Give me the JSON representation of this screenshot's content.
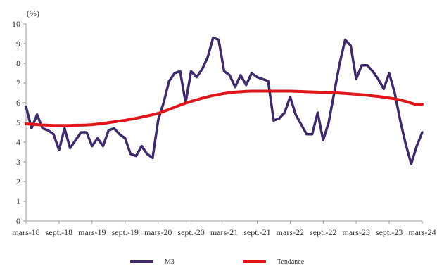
{
  "chart_data": {
    "type": "line",
    "unit_label": "(%)",
    "ylim": [
      0,
      10
    ],
    "yticks": [
      0,
      1,
      2,
      3,
      4,
      5,
      6,
      7,
      8,
      9,
      10
    ],
    "x_tick_labels": [
      "mars-18",
      "sept.-18",
      "mars-19",
      "sept.-19",
      "mars-20",
      "sept.-20",
      "mars-21",
      "sept.-21",
      "mars-22",
      "sept.-22",
      "mars-23",
      "sept.-23",
      "mars-24"
    ],
    "x": [
      "2018-03",
      "2018-04",
      "2018-05",
      "2018-06",
      "2018-07",
      "2018-08",
      "2018-09",
      "2018-10",
      "2018-11",
      "2018-12",
      "2019-01",
      "2019-02",
      "2019-03",
      "2019-04",
      "2019-05",
      "2019-06",
      "2019-07",
      "2019-08",
      "2019-09",
      "2019-10",
      "2019-11",
      "2019-12",
      "2020-01",
      "2020-02",
      "2020-03",
      "2020-04",
      "2020-05",
      "2020-06",
      "2020-07",
      "2020-08",
      "2020-09",
      "2020-10",
      "2020-11",
      "2020-12",
      "2021-01",
      "2021-02",
      "2021-03",
      "2021-04",
      "2021-05",
      "2021-06",
      "2021-07",
      "2021-08",
      "2021-09",
      "2021-10",
      "2021-11",
      "2021-12",
      "2022-01",
      "2022-02",
      "2022-03",
      "2022-04",
      "2022-05",
      "2022-06",
      "2022-07",
      "2022-08",
      "2022-09",
      "2022-10",
      "2022-11",
      "2022-12",
      "2023-01",
      "2023-02",
      "2023-03",
      "2023-04",
      "2023-05",
      "2023-06",
      "2023-07",
      "2023-08",
      "2023-09",
      "2023-10",
      "2023-11",
      "2023-12",
      "2024-01",
      "2024-02",
      "2024-03"
    ],
    "grid": false,
    "legend_position": "bottom",
    "series": [
      {
        "name": "M3",
        "color": "#3f2a6b",
        "values": [
          5.8,
          4.7,
          5.4,
          4.7,
          4.6,
          4.4,
          3.6,
          4.7,
          3.7,
          4.1,
          4.5,
          4.5,
          3.8,
          4.2,
          3.8,
          4.6,
          4.7,
          4.4,
          4.2,
          3.4,
          3.3,
          3.8,
          3.4,
          3.2,
          5.1,
          6.0,
          7.1,
          7.5,
          7.6,
          6.0,
          7.6,
          7.3,
          7.7,
          8.3,
          9.3,
          9.2,
          7.6,
          7.4,
          6.8,
          7.4,
          6.9,
          7.5,
          7.3,
          7.2,
          7.1,
          5.1,
          5.2,
          5.5,
          6.3,
          5.4,
          4.9,
          4.4,
          4.4,
          5.5,
          4.1,
          5.0,
          6.5,
          8.0,
          9.2,
          8.9,
          7.2,
          7.9,
          7.9,
          7.6,
          7.2,
          6.7,
          7.5,
          6.5,
          5.1,
          3.9,
          2.9,
          3.8,
          4.5
        ]
      },
      {
        "name": "Tendance",
        "color": "#e0161b",
        "values": [
          4.93,
          4.91,
          4.89,
          4.87,
          4.86,
          4.85,
          4.85,
          4.85,
          4.85,
          4.86,
          4.86,
          4.87,
          4.89,
          4.92,
          4.95,
          4.99,
          5.03,
          5.07,
          5.11,
          5.16,
          5.21,
          5.27,
          5.33,
          5.39,
          5.46,
          5.56,
          5.66,
          5.77,
          5.88,
          5.98,
          6.07,
          6.15,
          6.23,
          6.3,
          6.37,
          6.42,
          6.47,
          6.51,
          6.54,
          6.56,
          6.58,
          6.59,
          6.59,
          6.59,
          6.59,
          6.59,
          6.59,
          6.59,
          6.59,
          6.58,
          6.57,
          6.56,
          6.55,
          6.54,
          6.53,
          6.52,
          6.5,
          6.49,
          6.47,
          6.45,
          6.43,
          6.41,
          6.38,
          6.35,
          6.32,
          6.28,
          6.24,
          6.2,
          6.14,
          6.07,
          5.98,
          5.9,
          5.93
        ]
      }
    ]
  }
}
